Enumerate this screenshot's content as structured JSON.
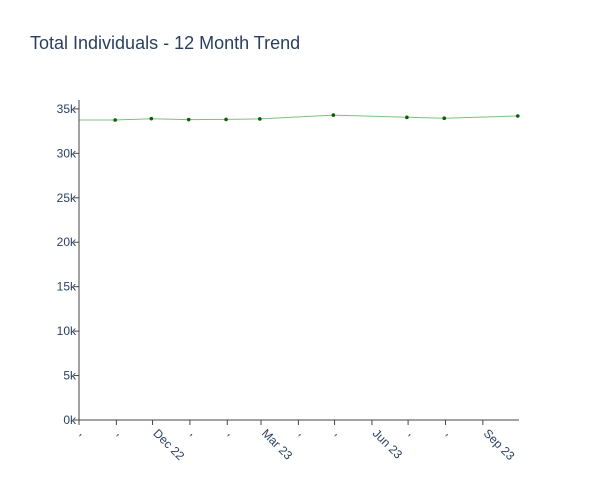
{
  "chart_data": {
    "type": "line",
    "title": "Total Individuals - 12 Month Trend",
    "xlabel": "",
    "ylabel": "",
    "x": [
      "2022-10-31",
      "2022-11-30",
      "2022-12-31",
      "2023-01-31",
      "2023-02-28",
      "2023-04-30",
      "2023-06-30",
      "2023-07-31",
      "2023-09-30"
    ],
    "series": [
      {
        "values": [
          33750,
          33900,
          33800,
          33820,
          33870,
          34300,
          34050,
          33950,
          34200
        ]
      }
    ],
    "xlim": [
      "2022-10-01",
      "2023-10-01"
    ],
    "ylim": [
      0,
      36000
    ],
    "y_ticks": [
      0,
      5000,
      10000,
      15000,
      20000,
      25000,
      30000,
      35000
    ],
    "y_tick_labels": [
      "0k",
      "5k",
      "10k",
      "15k",
      "20k",
      "25k",
      "30k",
      "35k"
    ],
    "x_ticks": [
      {
        "date": "2022-10-01",
        "label": ","
      },
      {
        "date": "2022-11-01",
        "label": ","
      },
      {
        "date": "2022-12-01",
        "label": "Dec 22"
      },
      {
        "date": "2023-01-01",
        "label": ","
      },
      {
        "date": "2023-02-01",
        "label": ","
      },
      {
        "date": "2023-03-01",
        "label": "Mar 23"
      },
      {
        "date": "2023-04-01",
        "label": ","
      },
      {
        "date": "2023-05-01",
        "label": ","
      },
      {
        "date": "2023-06-01",
        "label": "Jun 23"
      },
      {
        "date": "2023-07-01",
        "label": ","
      },
      {
        "date": "2023-08-01",
        "label": ","
      },
      {
        "date": "2023-09-01",
        "label": "Sep 23"
      }
    ],
    "grid": false,
    "legend": "none",
    "line_color": "#7fbf7f",
    "marker_color": "#006400",
    "axis_color": "#444444",
    "text_color": "#2a3f5f"
  }
}
